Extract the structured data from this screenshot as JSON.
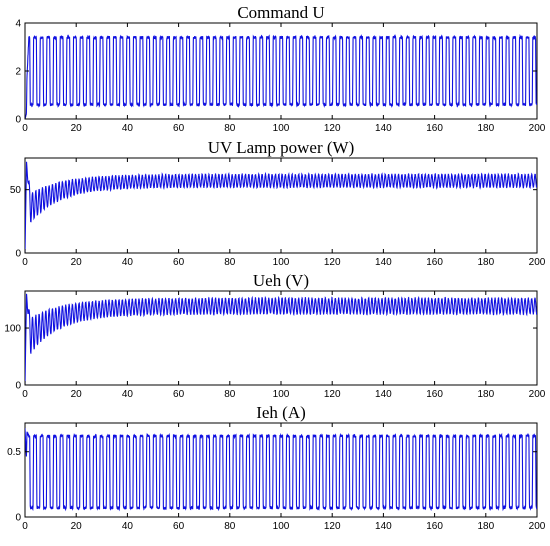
{
  "trace_color": "#1010e0",
  "chart_data": [
    {
      "type": "line",
      "title": "Command U",
      "xlim": [
        0,
        200
      ],
      "ylim": [
        0,
        4
      ],
      "xticks": [
        0,
        20,
        40,
        60,
        80,
        100,
        120,
        140,
        160,
        180,
        200
      ],
      "yticks": [
        0,
        2,
        4
      ],
      "xticklabels": [
        "0",
        "20",
        "40",
        "60",
        "80",
        "100",
        "120",
        "140",
        "160",
        "180",
        "200"
      ],
      "yticklabels": [
        "0",
        "2",
        "4"
      ],
      "series": [
        {
          "signal": "square-oscillation",
          "low": 0.6,
          "high": 3.4,
          "period": 2.6,
          "start": 0
        }
      ]
    },
    {
      "type": "line",
      "title": "UV Lamp power (W)",
      "xlim": [
        0,
        200
      ],
      "ylim": [
        0,
        75
      ],
      "xticks": [
        0,
        20,
        40,
        60,
        80,
        100,
        120,
        140,
        160,
        180,
        200
      ],
      "yticks": [
        0,
        50
      ],
      "xticklabels": [
        "0",
        "20",
        "40",
        "60",
        "80",
        "100",
        "120",
        "140",
        "160",
        "180",
        "200"
      ],
      "yticklabels": [
        "0",
        "50"
      ],
      "series": [
        {
          "signal": "rise-with-ripple",
          "initial": 0,
          "peak": 72,
          "settle_low": 52,
          "settle_high": 62,
          "period": 1.3
        }
      ]
    },
    {
      "type": "line",
      "title": "Ueh (V)",
      "xlim": [
        0,
        200
      ],
      "ylim": [
        0,
        165
      ],
      "xticks": [
        0,
        20,
        40,
        60,
        80,
        100,
        120,
        140,
        160,
        180,
        200
      ],
      "yticks": [
        0,
        100
      ],
      "xticklabels": [
        "0",
        "20",
        "40",
        "60",
        "80",
        "100",
        "120",
        "140",
        "160",
        "180",
        "200"
      ],
      "yticklabels": [
        "0",
        "100"
      ],
      "series": [
        {
          "signal": "rise-with-ripple",
          "initial": 0,
          "peak": 160,
          "settle_low": 125,
          "settle_high": 152,
          "period": 1.3
        }
      ]
    },
    {
      "type": "line",
      "title": "Ieh (A)",
      "xlim": [
        0,
        200
      ],
      "ylim": [
        0,
        0.72
      ],
      "xticks": [
        0,
        20,
        40,
        60,
        80,
        100,
        120,
        140,
        160,
        180,
        200
      ],
      "yticks": [
        0,
        0.5
      ],
      "xticklabels": [
        "0",
        "20",
        "40",
        "60",
        "80",
        "100",
        "120",
        "140",
        "160",
        "180",
        "200"
      ],
      "yticklabels": [
        "0",
        "0.5"
      ],
      "series": [
        {
          "signal": "square-oscillation",
          "low": 0.07,
          "high": 0.62,
          "period": 2.6,
          "start": 0.68
        }
      ]
    }
  ]
}
